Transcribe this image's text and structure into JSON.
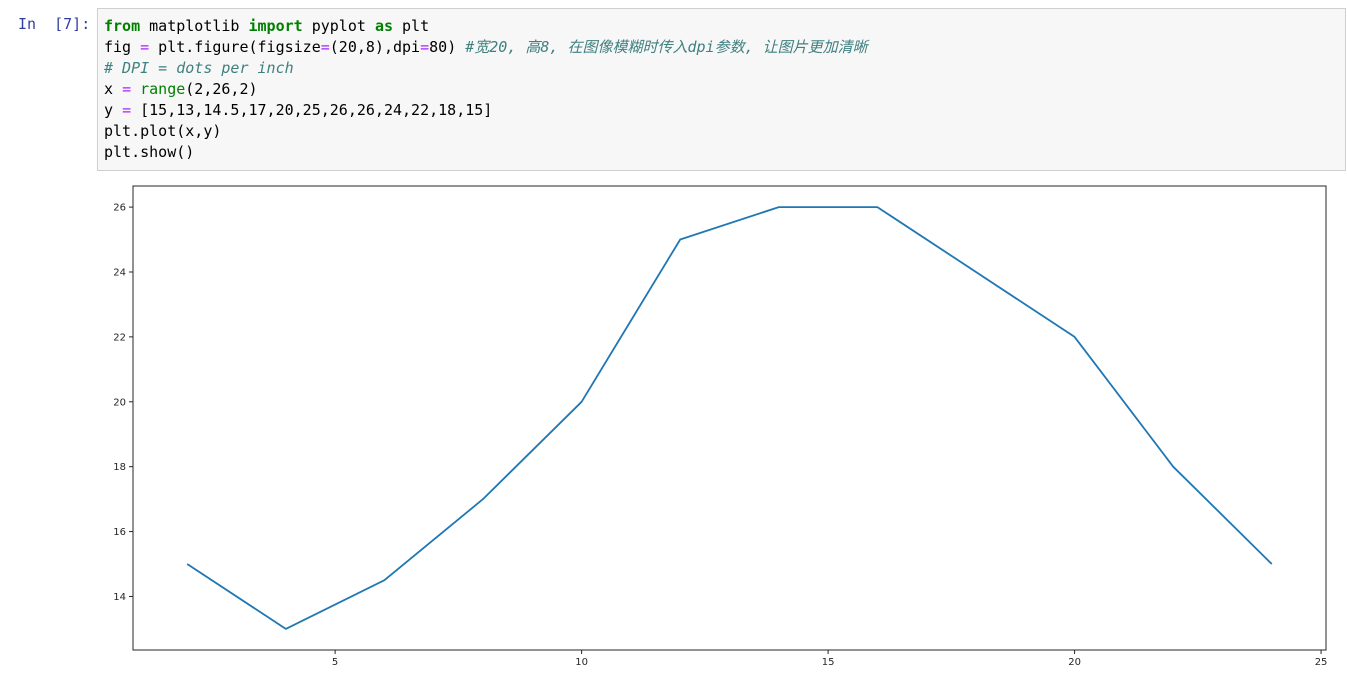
{
  "cell": {
    "prompt": "In  [7]:",
    "code": {
      "line1": {
        "kw1": "from",
        "mod": " matplotlib ",
        "kw2": "import",
        "mod2": " pyplot ",
        "kw3": "as",
        "alias": " plt"
      },
      "line2": {
        "pre": "fig ",
        "eq": "=",
        "mid": " plt.figure(figsize",
        "eq2": "=",
        "args": "(20,8),dpi",
        "eq3": "=",
        "num": "80",
        "close": ") ",
        "comment": "#宽20, 高8, 在图像模糊时传入dpi参数, 让图片更加清晰"
      },
      "line3": {
        "comment": "# DPI = dots per inch"
      },
      "line4": {
        "pre": "x ",
        "eq": "=",
        "sp": " ",
        "fn": "range",
        "args": "(2,26,2)"
      },
      "line5": {
        "pre": "y ",
        "eq": "=",
        "args": " [15,13,14.5,17,20,25,26,26,24,22,18,15]"
      },
      "line6": {
        "text": "plt.plot(x,y)"
      },
      "line7": {
        "text": "plt.show()"
      }
    }
  },
  "chart_data": {
    "type": "line",
    "x": [
      2,
      4,
      6,
      8,
      10,
      12,
      14,
      16,
      18,
      20,
      22,
      24
    ],
    "series": [
      {
        "values": [
          15,
          13,
          14.5,
          17,
          20,
          25,
          26,
          26,
          24,
          22,
          18,
          15
        ],
        "color": "#1f77b4"
      }
    ],
    "xlim": [
      0.9,
      25.1
    ],
    "ylim": [
      12.35,
      26.65
    ],
    "xticks": [
      5,
      10,
      15,
      20,
      25
    ],
    "yticks": [
      14,
      16,
      18,
      20,
      22,
      24,
      26
    ],
    "grid": false,
    "title": "",
    "xlabel": "",
    "ylabel": ""
  }
}
